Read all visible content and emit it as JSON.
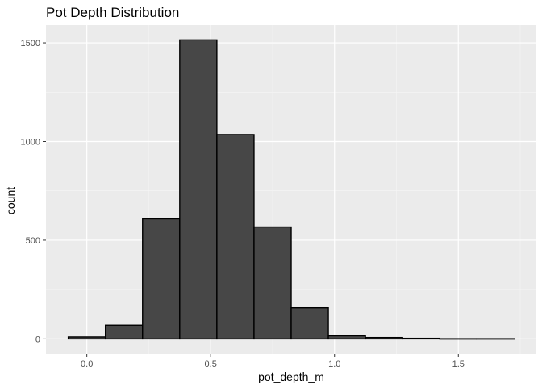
{
  "chart_data": {
    "type": "bar",
    "title": "Pot Depth Distribution",
    "xlabel": "pot_depth_m",
    "ylabel": "count",
    "xlim": [
      -0.165,
      1.815
    ],
    "ylim": [
      -76,
      1590
    ],
    "x_ticks": [
      0.0,
      0.5,
      1.0,
      1.5
    ],
    "x_tick_labels": [
      "0.0",
      "0.5",
      "1.0",
      "1.5"
    ],
    "y_ticks": [
      0,
      500,
      1000,
      1500
    ],
    "y_tick_labels": [
      "0",
      "500",
      "1000",
      "1500"
    ],
    "bin_width": 0.15,
    "bins": [
      {
        "x_start": -0.075,
        "x_end": 0.075,
        "count": 10
      },
      {
        "x_start": 0.075,
        "x_end": 0.225,
        "count": 70
      },
      {
        "x_start": 0.225,
        "x_end": 0.375,
        "count": 608
      },
      {
        "x_start": 0.375,
        "x_end": 0.525,
        "count": 1515
      },
      {
        "x_start": 0.525,
        "x_end": 0.675,
        "count": 1035
      },
      {
        "x_start": 0.675,
        "x_end": 0.825,
        "count": 567
      },
      {
        "x_start": 0.825,
        "x_end": 0.975,
        "count": 158
      },
      {
        "x_start": 0.975,
        "x_end": 1.125,
        "count": 16
      },
      {
        "x_start": 1.125,
        "x_end": 1.275,
        "count": 7
      },
      {
        "x_start": 1.275,
        "x_end": 1.425,
        "count": 3
      },
      {
        "x_start": 1.425,
        "x_end": 1.575,
        "count": 1
      },
      {
        "x_start": 1.575,
        "x_end": 1.725,
        "count": 1
      }
    ],
    "grid": true,
    "colors": {
      "panel_background": "#ebebeb",
      "grid_major": "#ffffff",
      "grid_minor": "#f5f5f5",
      "bar_fill": "#474747",
      "bar_outline": "#000000",
      "tick_text": "#4d4d4d"
    }
  }
}
